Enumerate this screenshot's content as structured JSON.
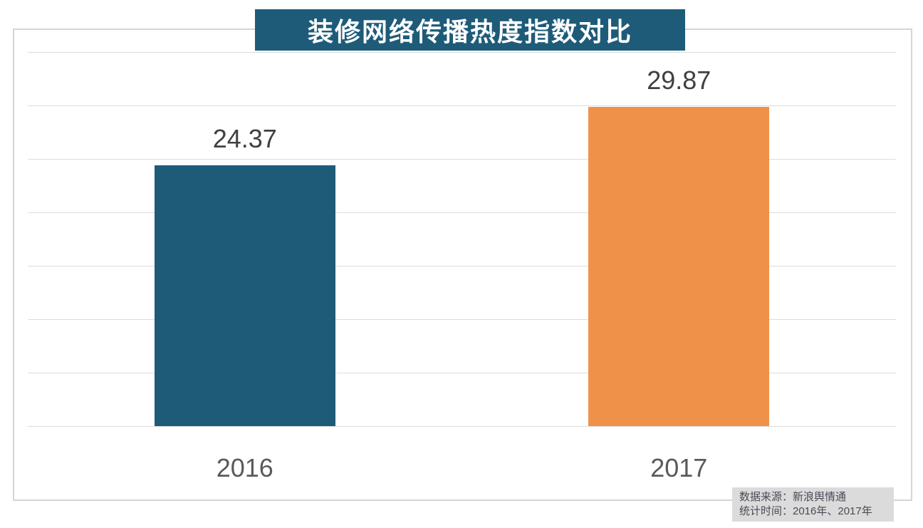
{
  "banner": {
    "label": "装修网络传播热度指数对比",
    "background": "#1e5b79",
    "text_color": "#ffffff"
  },
  "chart_data": {
    "type": "bar",
    "title": "装修网络传播热度指数对比",
    "categories": [
      "2016",
      "2017"
    ],
    "values": [
      24.37,
      29.87
    ],
    "data_labels": [
      "24.37",
      "29.87"
    ],
    "bar_colors": [
      "#1e5b79",
      "#f0914a"
    ],
    "xlabel": "",
    "ylabel": "",
    "ylim": [
      0,
      35
    ],
    "ytick_step": 5,
    "grid": "horizontal",
    "legend_position": "none"
  },
  "bars": [
    {
      "category": "2016",
      "value": 24.37,
      "label": "24.37",
      "color": "#1e5b79"
    },
    {
      "category": "2017",
      "value": 29.87,
      "label": "29.87",
      "color": "#f0914a"
    }
  ],
  "footer": {
    "source_line": "数据来源：新浪舆情通",
    "period_line": "统计时间：2016年、2017年",
    "background": "#dbdbdb"
  },
  "style": {
    "grid_color": "#dcdcdc",
    "frame_color": "#d5d5d5",
    "value_label_color": "#404040",
    "axis_label_color": "#5a5a5a",
    "background": "#ffffff"
  }
}
